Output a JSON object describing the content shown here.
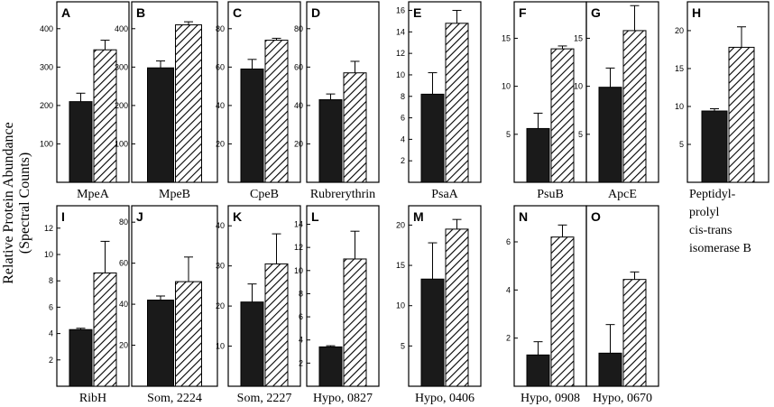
{
  "figure": {
    "ylabel_line1": "Relative Protein Abundance",
    "ylabel_line2": "(Spectral Counts)"
  },
  "chart_data": [
    {
      "type": "bar",
      "panel": "A",
      "title": "MpeA",
      "title_lines": [
        "MpeA"
      ],
      "ylim": [
        0,
        470
      ],
      "yticks": [
        100,
        200,
        300,
        400
      ],
      "series": [
        {
          "name": "solid",
          "values": [
            210
          ],
          "errors": [
            22
          ]
        },
        {
          "name": "hatched",
          "values": [
            345
          ],
          "errors": [
            25
          ]
        }
      ]
    },
    {
      "type": "bar",
      "panel": "B",
      "title": "MpeB",
      "title_lines": [
        "MpeB"
      ],
      "ylim": [
        0,
        470
      ],
      "yticks": [
        100,
        200,
        300,
        400
      ],
      "series": [
        {
          "name": "solid",
          "values": [
            298
          ],
          "errors": [
            18
          ]
        },
        {
          "name": "hatched",
          "values": [
            410
          ],
          "errors": [
            8
          ]
        }
      ]
    },
    {
      "type": "bar",
      "panel": "C",
      "title": "CpeB",
      "title_lines": [
        "CpeB"
      ],
      "ylim": [
        0,
        94
      ],
      "yticks": [
        20,
        40,
        60,
        80
      ],
      "series": [
        {
          "name": "solid",
          "values": [
            59
          ],
          "errors": [
            5
          ]
        },
        {
          "name": "hatched",
          "values": [
            74
          ],
          "errors": [
            1
          ]
        }
      ]
    },
    {
      "type": "bar",
      "panel": "D",
      "title": "Rubrerythrin",
      "title_lines": [
        "Rubrerythrin"
      ],
      "ylim": [
        0,
        94
      ],
      "yticks": [
        20,
        40,
        60,
        80
      ],
      "series": [
        {
          "name": "solid",
          "values": [
            43
          ],
          "errors": [
            3
          ]
        },
        {
          "name": "hatched",
          "values": [
            57
          ],
          "errors": [
            6
          ]
        }
      ]
    },
    {
      "type": "bar",
      "panel": "E",
      "title": "PsaA",
      "title_lines": [
        "PsaA"
      ],
      "ylim": [
        0,
        16.8
      ],
      "yticks": [
        2,
        4,
        6,
        8,
        10,
        12,
        14,
        16
      ],
      "series": [
        {
          "name": "solid",
          "values": [
            8.2
          ],
          "errors": [
            2
          ]
        },
        {
          "name": "hatched",
          "values": [
            14.8
          ],
          "errors": [
            1.2
          ]
        }
      ]
    },
    {
      "type": "bar",
      "panel": "F",
      "title": "PsuB",
      "title_lines": [
        "PsuB"
      ],
      "ylim": [
        0,
        18.8
      ],
      "yticks": [
        5,
        10,
        15
      ],
      "series": [
        {
          "name": "solid",
          "values": [
            5.6
          ],
          "errors": [
            1.6
          ]
        },
        {
          "name": "hatched",
          "values": [
            13.9
          ],
          "errors": [
            0.3
          ]
        }
      ]
    },
    {
      "type": "bar",
      "panel": "G",
      "title": "ApcE",
      "title_lines": [
        "ApcE"
      ],
      "ylim": [
        0,
        18.8
      ],
      "yticks": [
        5,
        10,
        15
      ],
      "series": [
        {
          "name": "solid",
          "values": [
            9.9
          ],
          "errors": [
            2
          ]
        },
        {
          "name": "hatched",
          "values": [
            15.8
          ],
          "errors": [
            2.6
          ]
        }
      ]
    },
    {
      "type": "bar",
      "panel": "H",
      "title": "Peptidyl-prolyl cis-trans isomerase B",
      "title_lines": [
        "Peptidyl-",
        "prolyl",
        "cis-trans",
        "isomerase B"
      ],
      "ylim": [
        0,
        23.8
      ],
      "yticks": [
        5,
        10,
        15,
        20
      ],
      "series": [
        {
          "name": "solid",
          "values": [
            9.4
          ],
          "errors": [
            0.3
          ]
        },
        {
          "name": "hatched",
          "values": [
            17.8
          ],
          "errors": [
            2.7
          ]
        }
      ]
    },
    {
      "type": "bar",
      "panel": "I",
      "title": "RibH",
      "title_lines": [
        "RibH"
      ],
      "ylim": [
        0,
        13.7
      ],
      "yticks": [
        2,
        4,
        6,
        8,
        10,
        12
      ],
      "series": [
        {
          "name": "solid",
          "values": [
            4.3
          ],
          "errors": [
            0.1
          ]
        },
        {
          "name": "hatched",
          "values": [
            8.6
          ],
          "errors": [
            2.4
          ]
        }
      ]
    },
    {
      "type": "bar",
      "panel": "J",
      "title": "Som, 2224",
      "title_lines": [
        "Som, 2224"
      ],
      "ylim": [
        0,
        88
      ],
      "yticks": [
        20,
        40,
        60,
        80
      ],
      "series": [
        {
          "name": "solid",
          "values": [
            42
          ],
          "errors": [
            2
          ]
        },
        {
          "name": "hatched",
          "values": [
            51
          ],
          "errors": [
            12
          ]
        }
      ]
    },
    {
      "type": "bar",
      "panel": "K",
      "title": "Som, 2227",
      "title_lines": [
        "Som, 2227"
      ],
      "ylim": [
        0,
        45
      ],
      "yticks": [
        10,
        20,
        30,
        40
      ],
      "series": [
        {
          "name": "solid",
          "values": [
            21
          ],
          "errors": [
            4.5
          ]
        },
        {
          "name": "hatched",
          "values": [
            30.5
          ],
          "errors": [
            7.5
          ]
        }
      ]
    },
    {
      "type": "bar",
      "panel": "L",
      "title": "Hypo, 0827",
      "title_lines": [
        "Hypo, 0827"
      ],
      "ylim": [
        0,
        15.6
      ],
      "yticks": [
        2,
        4,
        6,
        8,
        10,
        12,
        14
      ],
      "series": [
        {
          "name": "solid",
          "values": [
            3.4
          ],
          "errors": [
            0.1
          ]
        },
        {
          "name": "hatched",
          "values": [
            11
          ],
          "errors": [
            2.4
          ]
        }
      ]
    },
    {
      "type": "bar",
      "panel": "M",
      "title": "Hypo, 0406",
      "title_lines": [
        "Hypo, 0406"
      ],
      "ylim": [
        0,
        22.4
      ],
      "yticks": [
        5,
        10,
        15,
        20
      ],
      "series": [
        {
          "name": "solid",
          "values": [
            13.3
          ],
          "errors": [
            4.5
          ]
        },
        {
          "name": "hatched",
          "values": [
            19.5
          ],
          "errors": [
            1.2
          ]
        }
      ]
    },
    {
      "type": "bar",
      "panel": "N",
      "title": "Hypo, 0908",
      "title_lines": [
        "Hypo, 0908"
      ],
      "ylim": [
        0,
        7.5
      ],
      "yticks": [
        2,
        4,
        6
      ],
      "series": [
        {
          "name": "solid",
          "values": [
            1.3
          ],
          "errors": [
            0.55
          ]
        },
        {
          "name": "hatched",
          "values": [
            6.2
          ],
          "errors": [
            0.5
          ]
        }
      ]
    },
    {
      "type": "bar",
      "panel": "O",
      "title": "Hypo, 0670",
      "title_lines": [
        "Hypo, 0670"
      ],
      "ylim": [
        0,
        12
      ],
      "yticks": [],
      "series": [
        {
          "name": "solid",
          "values": [
            2.2
          ],
          "errors": [
            1.9
          ]
        },
        {
          "name": "hatched",
          "values": [
            7.1
          ],
          "errors": [
            0.5
          ]
        }
      ]
    }
  ]
}
